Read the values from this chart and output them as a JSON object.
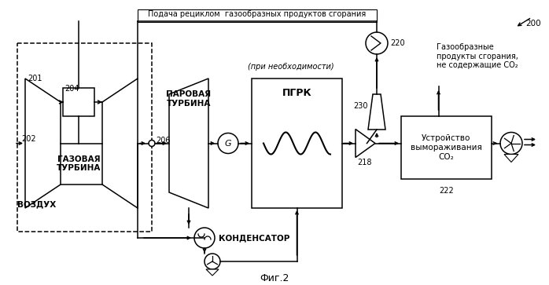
{
  "bg_color": "#ffffff",
  "line_color": "#000000",
  "label_200": "200",
  "label_201": "201",
  "label_202": "202",
  "label_204": "204",
  "label_206": "206",
  "label_218": "218",
  "label_220": "220",
  "label_222": "222",
  "label_230": "230",
  "text_recycle": "Подача рециклом  газообразных продуктов сгорания",
  "text_optional": "(при необходимости)",
  "text_gas_turbine": "ГАЗОВАЯ\nТУРБИНА",
  "text_air": "ВОЗДУХ",
  "text_steam_turbine": "ПАРОВАЯ\nТУРБИНА",
  "text_pgrk": "ПГРК",
  "text_condenser": "КОНДЕНСАТОР",
  "text_co2_device": "Устройство\nвымораживания\nCO₂",
  "text_flue_gas": "Газообразные\nпродукты сгорания,\nне содержащие CO₂",
  "text_fig": "Фиг.2"
}
